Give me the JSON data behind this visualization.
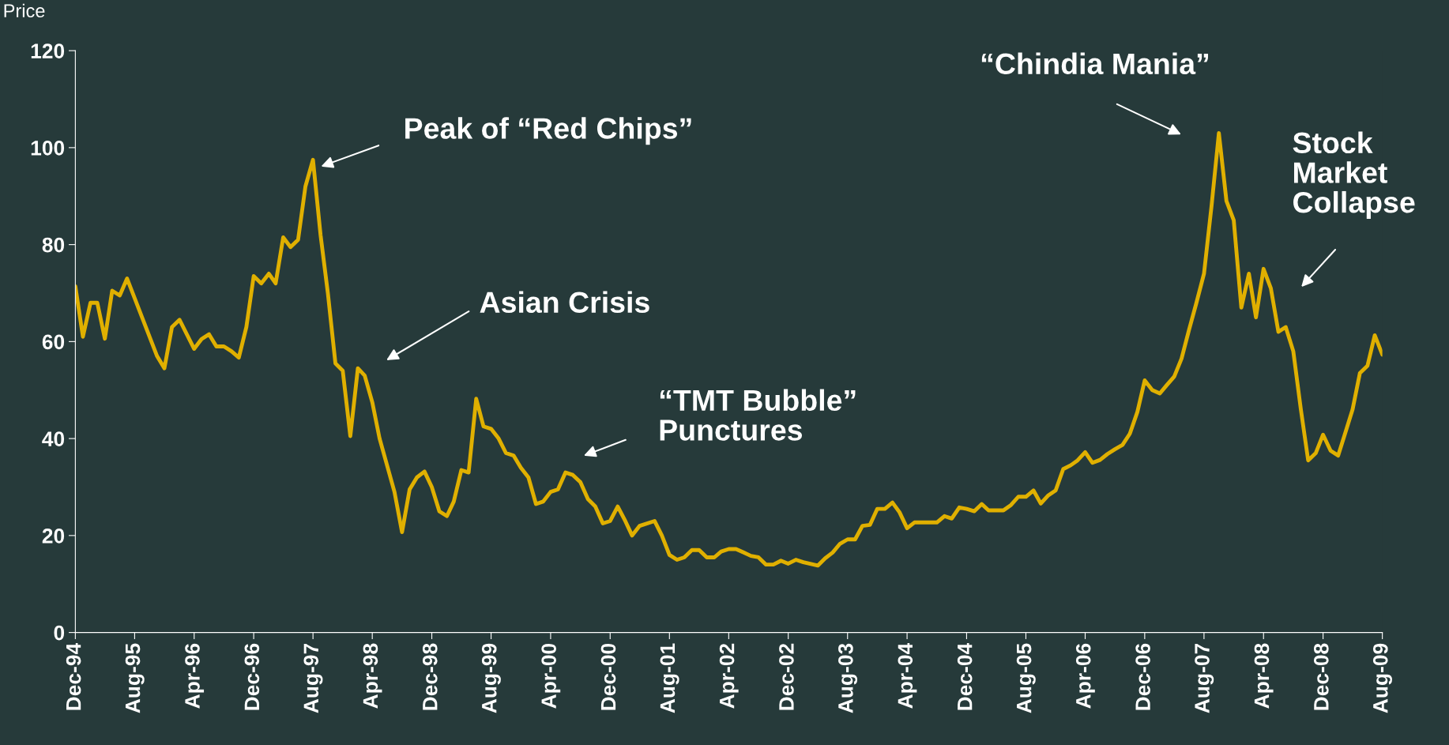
{
  "chart_data": {
    "type": "line",
    "ylabel": "Price",
    "x": [
      "1994-12",
      "1995-01",
      "1995-02",
      "1995-03",
      "1995-04",
      "1995-05",
      "1995-06",
      "1995-07",
      "1995-11",
      "1995-12",
      "1996-01",
      "1996-02",
      "1996-04",
      "1996-05",
      "1996-06",
      "1996-07",
      "1996-08",
      "1996-09",
      "1996-10",
      "1996-11",
      "1996-12",
      "1997-01",
      "1997-02",
      "1997-03",
      "1997-04",
      "1997-05",
      "1997-06",
      "1997-07",
      "1997-08",
      "1997-09",
      "1997-10",
      "1997-11",
      "1997-12",
      "1998-01",
      "1998-02",
      "1998-03",
      "1998-04",
      "1998-05",
      "1998-07",
      "1998-08",
      "1998-09",
      "1998-10",
      "1998-11",
      "1998-12",
      "1999-01",
      "1999-02",
      "1999-03",
      "1999-04",
      "1999-05",
      "1999-06",
      "1999-07",
      "1999-08",
      "1999-09",
      "1999-10",
      "1999-11",
      "1999-12",
      "2000-01",
      "2000-02",
      "2000-03",
      "2000-04",
      "2000-05",
      "2000-06",
      "2000-07",
      "2000-08",
      "2000-09",
      "2000-10",
      "2000-11",
      "2000-12",
      "2001-01",
      "2001-02",
      "2001-03",
      "2001-04",
      "2001-06",
      "2001-07",
      "2001-08",
      "2001-09",
      "2001-10",
      "2001-11",
      "2001-12",
      "2002-01",
      "2002-02",
      "2002-03",
      "2002-04",
      "2002-05",
      "2002-06",
      "2002-07",
      "2002-08",
      "2002-09",
      "2002-10",
      "2002-11",
      "2002-12",
      "2003-01",
      "2003-02",
      "2003-04",
      "2003-05",
      "2003-06",
      "2003-07",
      "2003-08",
      "2003-09",
      "2003-10",
      "2003-11",
      "2003-12",
      "2004-01",
      "2004-02",
      "2004-03",
      "2004-04",
      "2004-05",
      "2004-08",
      "2004-09",
      "2004-10",
      "2004-11",
      "2004-12",
      "2005-01",
      "2005-02",
      "2005-03",
      "2005-05",
      "2005-06",
      "2005-07",
      "2005-08",
      "2005-09",
      "2005-10",
      "2005-11",
      "2005-12",
      "2006-01",
      "2006-02",
      "2006-03",
      "2006-04",
      "2006-05",
      "2006-06",
      "2006-07",
      "2006-08",
      "2006-09",
      "2006-10",
      "2006-11",
      "2006-12",
      "2007-01",
      "2007-02",
      "2007-03",
      "2007-04",
      "2007-05",
      "2007-06",
      "2007-07",
      "2007-08",
      "2007-09",
      "2007-10",
      "2007-11",
      "2007-12",
      "2008-01",
      "2008-02",
      "2008-03",
      "2008-04",
      "2008-05",
      "2008-06",
      "2008-07",
      "2008-08",
      "2008-09",
      "2008-10",
      "2008-11",
      "2008-12",
      "2009-01",
      "2009-02",
      "2009-03",
      "2009-04",
      "2009-05",
      "2009-06",
      "2009-07",
      "2009-08"
    ],
    "series": [
      {
        "color": "#e0b000",
        "values": [
          71.4,
          61,
          68,
          68,
          60.6,
          70.5,
          69.5,
          73,
          57,
          54.5,
          63,
          64.5,
          58.5,
          60.5,
          61.5,
          59,
          59,
          58,
          56.7,
          63,
          73.5,
          72,
          74,
          72,
          81.5,
          79.5,
          81,
          92,
          97.5,
          82,
          70,
          55.5,
          54,
          40.5,
          54.5,
          53,
          47.5,
          40,
          29,
          20.7,
          29.5,
          32,
          33.2,
          30,
          25,
          24,
          27,
          33.5,
          33,
          48.2,
          42.5,
          42,
          40,
          37,
          36.5,
          34,
          32,
          26.5,
          27,
          29,
          29.5,
          33,
          32.5,
          31,
          27.5,
          26,
          22.5,
          23,
          26,
          23,
          20,
          22,
          23,
          20,
          16,
          15,
          15.5,
          17,
          17,
          15.5,
          15.5,
          16.7,
          17.2,
          17.2,
          16.5,
          15.8,
          15.5,
          14,
          14,
          14.8,
          14.2,
          15,
          14.5,
          13.8,
          15.3,
          16.5,
          18.3,
          19.2,
          19.2,
          22,
          22.2,
          25.5,
          25.5,
          26.8,
          24.8,
          21.5,
          22.7,
          22.7,
          24,
          23.5,
          25.8,
          25.5,
          25,
          26.5,
          25.2,
          25.2,
          26.3,
          28,
          28,
          29.3,
          26.6,
          28.3,
          29.3,
          33.7,
          34.5,
          35.5,
          37.2,
          35,
          35.6,
          36.8,
          37.8,
          38.7,
          41,
          45.5,
          52,
          50,
          49.3,
          51,
          52.8,
          56.5,
          62.5,
          68,
          74,
          88,
          103,
          89,
          85,
          67,
          74,
          65,
          75,
          71,
          62,
          63,
          58,
          46,
          35.5,
          37,
          40.8,
          37.5,
          36.5,
          41,
          46,
          53.5,
          55,
          61.3,
          57.3
        ]
      }
    ],
    "xlim": [
      "1994-12",
      "2009-08"
    ],
    "xticks": [
      {
        "value": "1994-12",
        "label": "Dec-94"
      },
      {
        "value": "1995-08",
        "label": "Aug-95"
      },
      {
        "value": "1996-04",
        "label": "Apr-96"
      },
      {
        "value": "1996-12",
        "label": "Dec-96"
      },
      {
        "value": "1997-08",
        "label": "Aug-97"
      },
      {
        "value": "1998-04",
        "label": "Apr-98"
      },
      {
        "value": "1998-12",
        "label": "Dec-98"
      },
      {
        "value": "1999-08",
        "label": "Aug-99"
      },
      {
        "value": "2000-04",
        "label": "Apr-00"
      },
      {
        "value": "2000-12",
        "label": "Dec-00"
      },
      {
        "value": "2001-08",
        "label": "Aug-01"
      },
      {
        "value": "2002-04",
        "label": "Apr-02"
      },
      {
        "value": "2002-12",
        "label": "Dec-02"
      },
      {
        "value": "2003-08",
        "label": "Aug-03"
      },
      {
        "value": "2004-04",
        "label": "Apr-04"
      },
      {
        "value": "2004-12",
        "label": "Dec-04"
      },
      {
        "value": "2005-08",
        "label": "Aug-05"
      },
      {
        "value": "2006-04",
        "label": "Apr-06"
      },
      {
        "value": "2006-12",
        "label": "Dec-06"
      },
      {
        "value": "2007-08",
        "label": "Aug-07"
      },
      {
        "value": "2008-04",
        "label": "Apr-08"
      },
      {
        "value": "2008-12",
        "label": "Dec-08"
      },
      {
        "value": "2009-08",
        "label": "Aug-09"
      }
    ],
    "ylim": [
      0,
      120
    ],
    "yticks": [
      0,
      20,
      40,
      60,
      80,
      100,
      120
    ],
    "grid": false,
    "legend": false,
    "marker": "none",
    "line_style": "solid",
    "annotations": [
      "Peak of “Red Chips”",
      "Asian Crisis",
      "“TMT Bubble”\nPunctures",
      "“Chindia Mania”",
      "Stock\nMarket\nCollapse"
    ]
  }
}
